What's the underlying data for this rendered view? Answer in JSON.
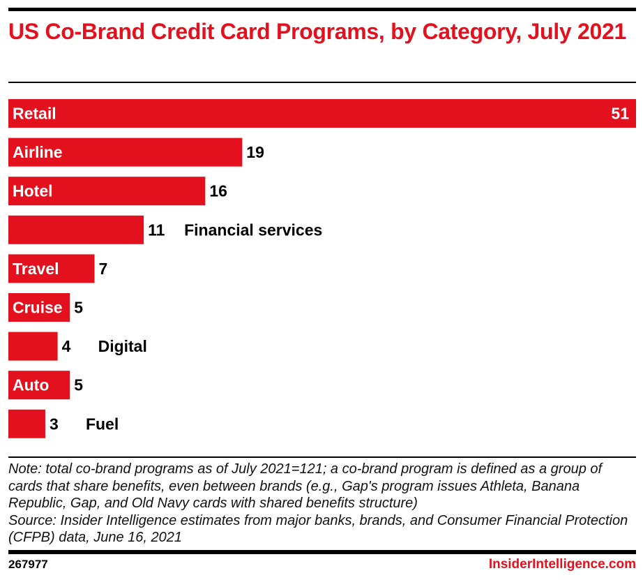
{
  "chart_data": {
    "type": "bar",
    "orientation": "horizontal",
    "title": "US Co-Brand Credit Card Programs, by Category, July 2021",
    "categories": [
      "Retail",
      "Airline",
      "Hotel",
      "Financial services",
      "Travel",
      "Cruise",
      "Digital",
      "Auto",
      "Fuel"
    ],
    "values": [
      51,
      19,
      16,
      11,
      7,
      5,
      4,
      5,
      3
    ],
    "xlim": [
      0,
      51
    ],
    "bar_color": "#e3111d",
    "grid": false
  },
  "note": "Note: total co-brand programs as of July 2021=121; a co-brand program is defined as a group of cards that share benefits, even between brands (e.g., Gap's program issues Athleta, Banana Republic, Gap, and Old Navy cards with shared benefits structure)",
  "source": "Source: Insider Intelligence estimates from major banks, brands, and Consumer Financial Protection (CFPB) data, June 16, 2021",
  "footer": {
    "chart_id": "267977",
    "brand": "InsiderIntelligence.com"
  }
}
